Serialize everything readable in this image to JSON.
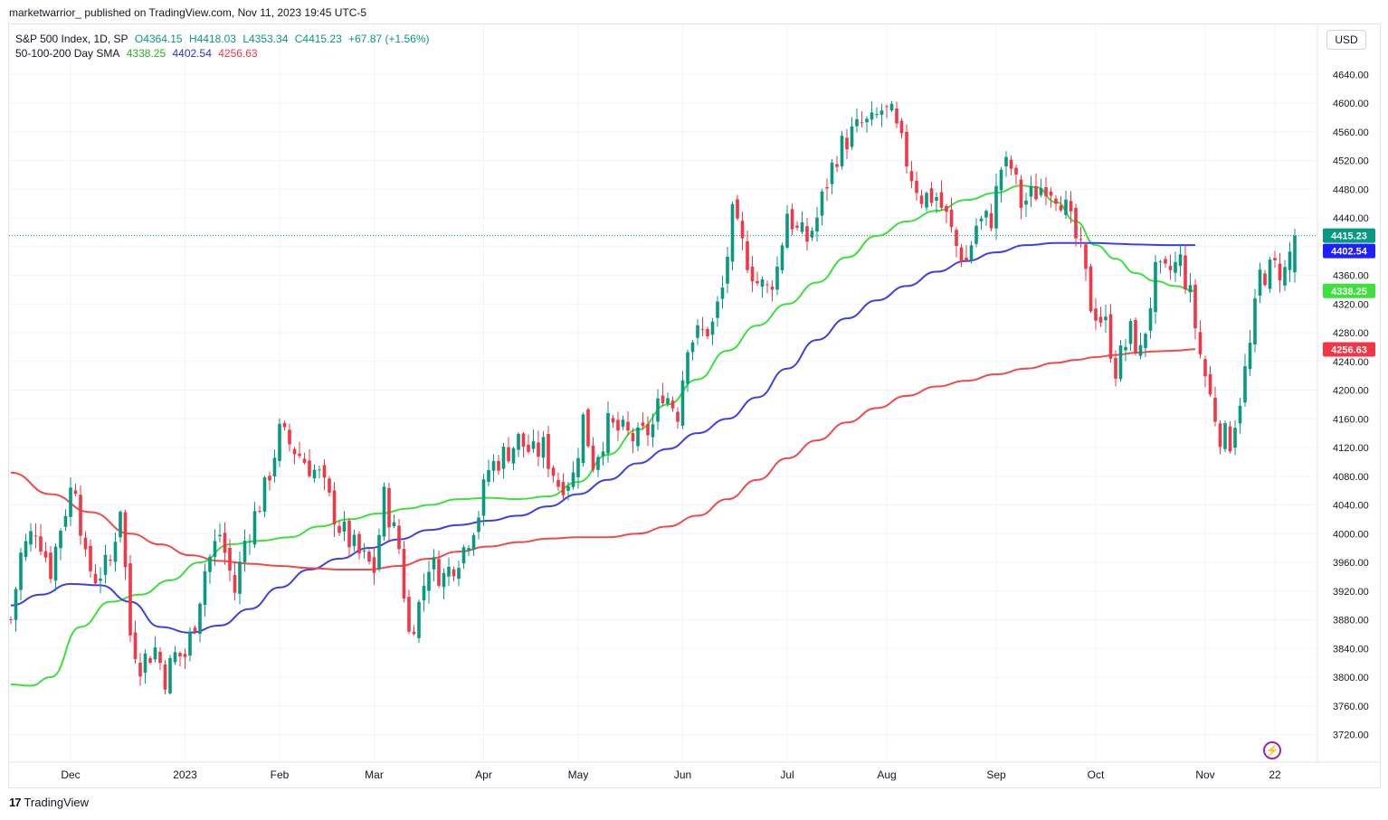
{
  "caption": "marketwarrior_ published on TradingView.com, Nov 11, 2023 19:45 UTC-5",
  "legend": {
    "symbol_line": "S&P 500 Index, 1D, SP",
    "open": "O4364.15",
    "high": "H4418.03",
    "low": "L4353.34",
    "close": "C4415.23",
    "change": "+67.87 (+1.56%)",
    "sma_title": "50-100-200 Day SMA",
    "sma50_value": "4338.25",
    "sma100_value": "4402.54",
    "sma200_value": "4256.63"
  },
  "currency_button": "USD",
  "footer_brand": "TradingView",
  "colors": {
    "up": "#089981",
    "down": "#f23645",
    "sma50": "#3ee03e",
    "sma100": "#3f3fe8",
    "sma200": "#f04a4a",
    "last_price_line": "#089981"
  },
  "chart_data": {
    "type": "candlestick",
    "title": "S&P 500 Index, 1D, SP",
    "y_ticks": [
      3720,
      3760,
      3800,
      3840,
      3880,
      3920,
      3960,
      4000,
      4040,
      4080,
      4120,
      4160,
      4200,
      4240,
      4280,
      4320,
      4360,
      4400,
      4440,
      4480,
      4520,
      4560,
      4600,
      4640
    ],
    "y_tick_labels": [
      "3720.00",
      "3760.00",
      "3800.00",
      "3840.00",
      "3880.00",
      "3920.00",
      "3960.00",
      "4000.00",
      "4040.00",
      "4080.00",
      "4120.00",
      "4160.00",
      "4200.00",
      "4240.00",
      "4280.00",
      "4320.00",
      "4360.00",
      "4400.00",
      "4440.00",
      "4480.00",
      "4520.00",
      "4560.00",
      "4600.00",
      "4640.00"
    ],
    "ylim": [
      3680,
      4680
    ],
    "x_labels": [
      {
        "label": "Dec",
        "day": 12
      },
      {
        "label": "2023",
        "day": 35
      },
      {
        "label": "Feb",
        "day": 54
      },
      {
        "label": "Mar",
        "day": 73
      },
      {
        "label": "Apr",
        "day": 95
      },
      {
        "label": "May",
        "day": 114
      },
      {
        "label": "Jun",
        "day": 135
      },
      {
        "label": "Jul",
        "day": 156
      },
      {
        "label": "Aug",
        "day": 176
      },
      {
        "label": "Sep",
        "day": 198
      },
      {
        "label": "Oct",
        "day": 218
      },
      {
        "label": "Nov",
        "day": 240
      },
      {
        "label": "22",
        "day": 254
      }
    ],
    "last_close": 4415.23,
    "price_badges": [
      {
        "label": "4415.23",
        "value": 4415.23,
        "color": "#089981"
      },
      {
        "label": "4402.54",
        "value": 4402.54,
        "color": "#1f1fff"
      },
      {
        "label": "4338.25",
        "value": 4338.25,
        "color": "#3ee03e"
      },
      {
        "label": "4256.63",
        "value": 4256.63,
        "color": "#f23645"
      }
    ],
    "price_anchors": [
      [
        0,
        3880
      ],
      [
        2,
        3970
      ],
      [
        5,
        4010
      ],
      [
        8,
        3950
      ],
      [
        10,
        4010
      ],
      [
        12,
        4060
      ],
      [
        13,
        4070
      ],
      [
        15,
        3960
      ],
      [
        17,
        3940
      ],
      [
        20,
        3960
      ],
      [
        22,
        4040
      ],
      [
        24,
        3860
      ],
      [
        26,
        3820
      ],
      [
        29,
        3840
      ],
      [
        31,
        3800
      ],
      [
        33,
        3830
      ],
      [
        35,
        3830
      ],
      [
        37,
        3880
      ],
      [
        39,
        3950
      ],
      [
        42,
        4000
      ],
      [
        45,
        3920
      ],
      [
        47,
        3990
      ],
      [
        51,
        4060
      ],
      [
        54,
        4140
      ],
      [
        58,
        4110
      ],
      [
        62,
        4080
      ],
      [
        66,
        4010
      ],
      [
        70,
        3970
      ],
      [
        73,
        3950
      ],
      [
        75,
        4050
      ],
      [
        78,
        3980
      ],
      [
        80,
        3860
      ],
      [
        82,
        3900
      ],
      [
        84,
        3960
      ],
      [
        87,
        3940
      ],
      [
        91,
        3980
      ],
      [
        94,
        4030
      ],
      [
        96,
        4090
      ],
      [
        99,
        4110
      ],
      [
        102,
        4130
      ],
      [
        105,
        4110
      ],
      [
        107,
        4120
      ],
      [
        110,
        4070
      ],
      [
        113,
        4080
      ],
      [
        115,
        4160
      ],
      [
        117,
        4100
      ],
      [
        120,
        4150
      ],
      [
        123,
        4140
      ],
      [
        126,
        4130
      ],
      [
        129,
        4150
      ],
      [
        131,
        4200
      ],
      [
        134,
        4170
      ],
      [
        136,
        4270
      ],
      [
        139,
        4280
      ],
      [
        141,
        4290
      ],
      [
        143,
        4340
      ],
      [
        145,
        4440
      ],
      [
        147,
        4400
      ],
      [
        150,
        4350
      ],
      [
        152,
        4340
      ],
      [
        154,
        4370
      ],
      [
        156,
        4450
      ],
      [
        158,
        4420
      ],
      [
        160,
        4410
      ],
      [
        162,
        4440
      ],
      [
        164,
        4490
      ],
      [
        166,
        4530
      ],
      [
        168,
        4550
      ],
      [
        171,
        4570
      ],
      [
        173,
        4570
      ],
      [
        175,
        4590
      ],
      [
        177,
        4580
      ],
      [
        179,
        4540
      ],
      [
        181,
        4500
      ],
      [
        183,
        4470
      ],
      [
        186,
        4470
      ],
      [
        188,
        4440
      ],
      [
        190,
        4400
      ],
      [
        192,
        4380
      ],
      [
        194,
        4430
      ],
      [
        197,
        4440
      ],
      [
        199,
        4510
      ],
      [
        201,
        4510
      ],
      [
        203,
        4460
      ],
      [
        205,
        4470
      ],
      [
        208,
        4490
      ],
      [
        211,
        4470
      ],
      [
        213,
        4430
      ],
      [
        215,
        4390
      ],
      [
        217,
        4320
      ],
      [
        220,
        4290
      ],
      [
        222,
        4230
      ],
      [
        225,
        4280
      ],
      [
        227,
        4250
      ],
      [
        230,
        4360
      ],
      [
        232,
        4360
      ],
      [
        235,
        4380
      ],
      [
        237,
        4330
      ],
      [
        239,
        4250
      ],
      [
        241,
        4190
      ],
      [
        243,
        4140
      ],
      [
        245,
        4130
      ],
      [
        247,
        4190
      ],
      [
        249,
        4260
      ],
      [
        251,
        4360
      ],
      [
        254,
        4370
      ],
      [
        256,
        4365
      ],
      [
        258,
        4415
      ]
    ],
    "series": [
      {
        "name": "50",
        "values": [
          [
            0,
            3790
          ],
          [
            4,
            3788
          ],
          [
            8,
            3800
          ],
          [
            14,
            3870
          ],
          [
            20,
            3905
          ],
          [
            26,
            3915
          ],
          [
            32,
            3935
          ],
          [
            38,
            3960
          ],
          [
            44,
            3985
          ],
          [
            50,
            3990
          ],
          [
            56,
            3995
          ],
          [
            62,
            4010
          ],
          [
            68,
            4020
          ],
          [
            74,
            4028
          ],
          [
            80,
            4035
          ],
          [
            84,
            4040
          ],
          [
            90,
            4048
          ],
          [
            96,
            4050
          ],
          [
            102,
            4048
          ],
          [
            108,
            4052
          ],
          [
            114,
            4072
          ],
          [
            120,
            4110
          ],
          [
            126,
            4145
          ],
          [
            132,
            4180
          ],
          [
            138,
            4215
          ],
          [
            144,
            4255
          ],
          [
            150,
            4290
          ],
          [
            156,
            4320
          ],
          [
            162,
            4350
          ],
          [
            168,
            4385
          ],
          [
            174,
            4415
          ],
          [
            180,
            4435
          ],
          [
            186,
            4450
          ],
          [
            192,
            4465
          ],
          [
            198,
            4475
          ],
          [
            203,
            4485
          ],
          [
            206,
            4483
          ],
          [
            210,
            4462
          ],
          [
            214,
            4435
          ],
          [
            218,
            4402
          ],
          [
            222,
            4383
          ],
          [
            226,
            4363
          ],
          [
            230,
            4352
          ],
          [
            234,
            4345
          ],
          [
            238,
            4338
          ]
        ]
      },
      {
        "name": "100",
        "values": [
          [
            0,
            3900
          ],
          [
            6,
            3915
          ],
          [
            12,
            3930
          ],
          [
            18,
            3928
          ],
          [
            24,
            3905
          ],
          [
            30,
            3870
          ],
          [
            36,
            3862
          ],
          [
            42,
            3872
          ],
          [
            48,
            3895
          ],
          [
            54,
            3925
          ],
          [
            60,
            3950
          ],
          [
            66,
            3965
          ],
          [
            72,
            3980
          ],
          [
            78,
            3992
          ],
          [
            84,
            4005
          ],
          [
            90,
            4012
          ],
          [
            96,
            4018
          ],
          [
            102,
            4025
          ],
          [
            108,
            4038
          ],
          [
            114,
            4055
          ],
          [
            120,
            4075
          ],
          [
            126,
            4098
          ],
          [
            132,
            4118
          ],
          [
            138,
            4140
          ],
          [
            144,
            4160
          ],
          [
            150,
            4190
          ],
          [
            156,
            4230
          ],
          [
            162,
            4270
          ],
          [
            168,
            4300
          ],
          [
            174,
            4325
          ],
          [
            180,
            4345
          ],
          [
            186,
            4365
          ],
          [
            192,
            4380
          ],
          [
            198,
            4392
          ],
          [
            204,
            4402
          ],
          [
            210,
            4405
          ],
          [
            214,
            4405
          ],
          [
            218,
            4405
          ],
          [
            222,
            4404
          ],
          [
            226,
            4403
          ],
          [
            232,
            4402
          ],
          [
            238,
            4402
          ]
        ]
      },
      {
        "name": "200",
        "values": [
          [
            0,
            4085
          ],
          [
            8,
            4055
          ],
          [
            16,
            4030
          ],
          [
            24,
            4000
          ],
          [
            30,
            3985
          ],
          [
            36,
            3970
          ],
          [
            42,
            3962
          ],
          [
            48,
            3958
          ],
          [
            54,
            3955
          ],
          [
            60,
            3952
          ],
          [
            66,
            3950
          ],
          [
            72,
            3950
          ],
          [
            78,
            3955
          ],
          [
            84,
            3965
          ],
          [
            90,
            3975
          ],
          [
            96,
            3982
          ],
          [
            102,
            3988
          ],
          [
            108,
            3993
          ],
          [
            114,
            3995
          ],
          [
            120,
            3995
          ],
          [
            126,
            4000
          ],
          [
            132,
            4010
          ],
          [
            138,
            4025
          ],
          [
            144,
            4048
          ],
          [
            150,
            4075
          ],
          [
            156,
            4105
          ],
          [
            162,
            4130
          ],
          [
            168,
            4155
          ],
          [
            174,
            4175
          ],
          [
            180,
            4192
          ],
          [
            186,
            4205
          ],
          [
            192,
            4213
          ],
          [
            198,
            4222
          ],
          [
            204,
            4230
          ],
          [
            210,
            4238
          ],
          [
            214,
            4242
          ],
          [
            218,
            4246
          ],
          [
            222,
            4249
          ],
          [
            226,
            4252
          ],
          [
            230,
            4254
          ],
          [
            234,
            4255
          ],
          [
            238,
            4257
          ]
        ]
      }
    ]
  }
}
